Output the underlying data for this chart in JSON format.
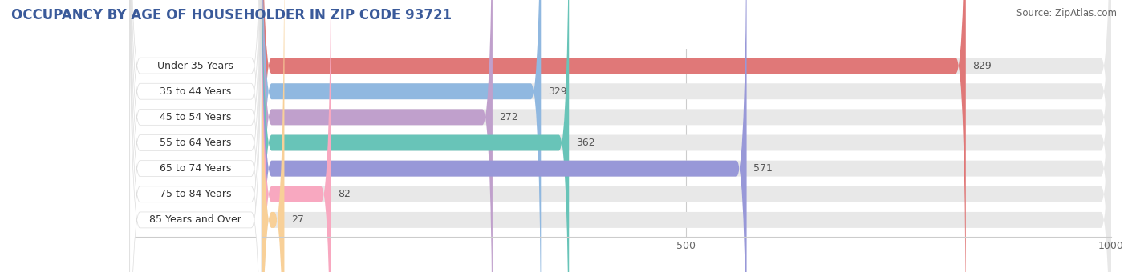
{
  "title": "OCCUPANCY BY AGE OF HOUSEHOLDER IN ZIP CODE 93721",
  "source": "Source: ZipAtlas.com",
  "categories": [
    "Under 35 Years",
    "35 to 44 Years",
    "45 to 54 Years",
    "55 to 64 Years",
    "65 to 74 Years",
    "75 to 84 Years",
    "85 Years and Over"
  ],
  "values": [
    829,
    329,
    272,
    362,
    571,
    82,
    27
  ],
  "bar_colors": [
    "#e07878",
    "#90b8e0",
    "#c0a0cc",
    "#68c4b8",
    "#9898d8",
    "#f8a8c0",
    "#f8d098"
  ],
  "xmax": 1000,
  "xticks": [
    0,
    500,
    1000
  ],
  "background_color": "#ffffff",
  "bar_background_color": "#e8e8e8",
  "title_fontsize": 12,
  "label_fontsize": 9,
  "value_fontsize": 9,
  "source_fontsize": 8.5,
  "title_color": "#3a5a9a",
  "label_text_color": "#333333",
  "value_text_color": "#555555"
}
